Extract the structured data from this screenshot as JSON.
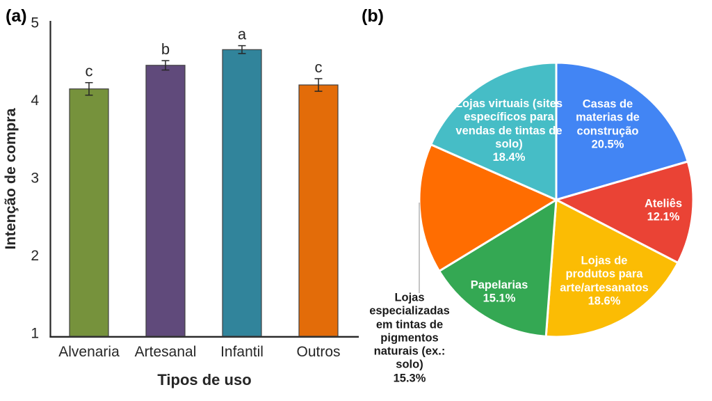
{
  "panels": [
    {
      "tag": "(a)"
    },
    {
      "tag": "(b)"
    }
  ],
  "chart_data": [
    {
      "type": "bar",
      "panel": "(a)",
      "categories": [
        "Alvenaria",
        "Artesanal",
        "Infantil",
        "Outros"
      ],
      "values": [
        4.15,
        4.45,
        4.65,
        4.2
      ],
      "errors": [
        0.08,
        0.06,
        0.05,
        0.08
      ],
      "sig_letters": [
        "c",
        "b",
        "a",
        "c"
      ],
      "bar_colors": [
        "#76923C",
        "#604A7B",
        "#31849B",
        "#E36C09"
      ],
      "xlabel": "Tipos de uso",
      "ylabel": "Intenção de compra",
      "ylim": [
        1,
        5
      ],
      "yticks": [
        1,
        2,
        3,
        4,
        5
      ],
      "grid": false,
      "legend": false
    },
    {
      "type": "pie",
      "panel": "(b)",
      "start_angle_deg": 0,
      "direction": "clockwise",
      "slices": [
        {
          "label": "Casas de materias de construção",
          "pct": "20.5%",
          "value": 20.5,
          "color": "#4285F4"
        },
        {
          "label": "Ateliês",
          "pct": "12.1%",
          "value": 12.1,
          "color": "#EA4335"
        },
        {
          "label": "Lojas de produtos para arte/artesanatos",
          "pct": "18.6%",
          "value": 18.6,
          "color": "#FBBC04"
        },
        {
          "label": "Papelarias",
          "pct": "15.1%",
          "value": 15.1,
          "color": "#34A853"
        },
        {
          "label": "Lojas especializadas em tintas de pigmentos naturais (ex.: solo)",
          "pct": "15.3%",
          "value": 15.3,
          "color": "#FF6D01",
          "label_outside": true
        },
        {
          "label": "Lojas virtuais (sites específicos para vendas de tintas de solo)",
          "pct": "18.4%",
          "value": 18.4,
          "color": "#46BDC6"
        }
      ]
    }
  ]
}
